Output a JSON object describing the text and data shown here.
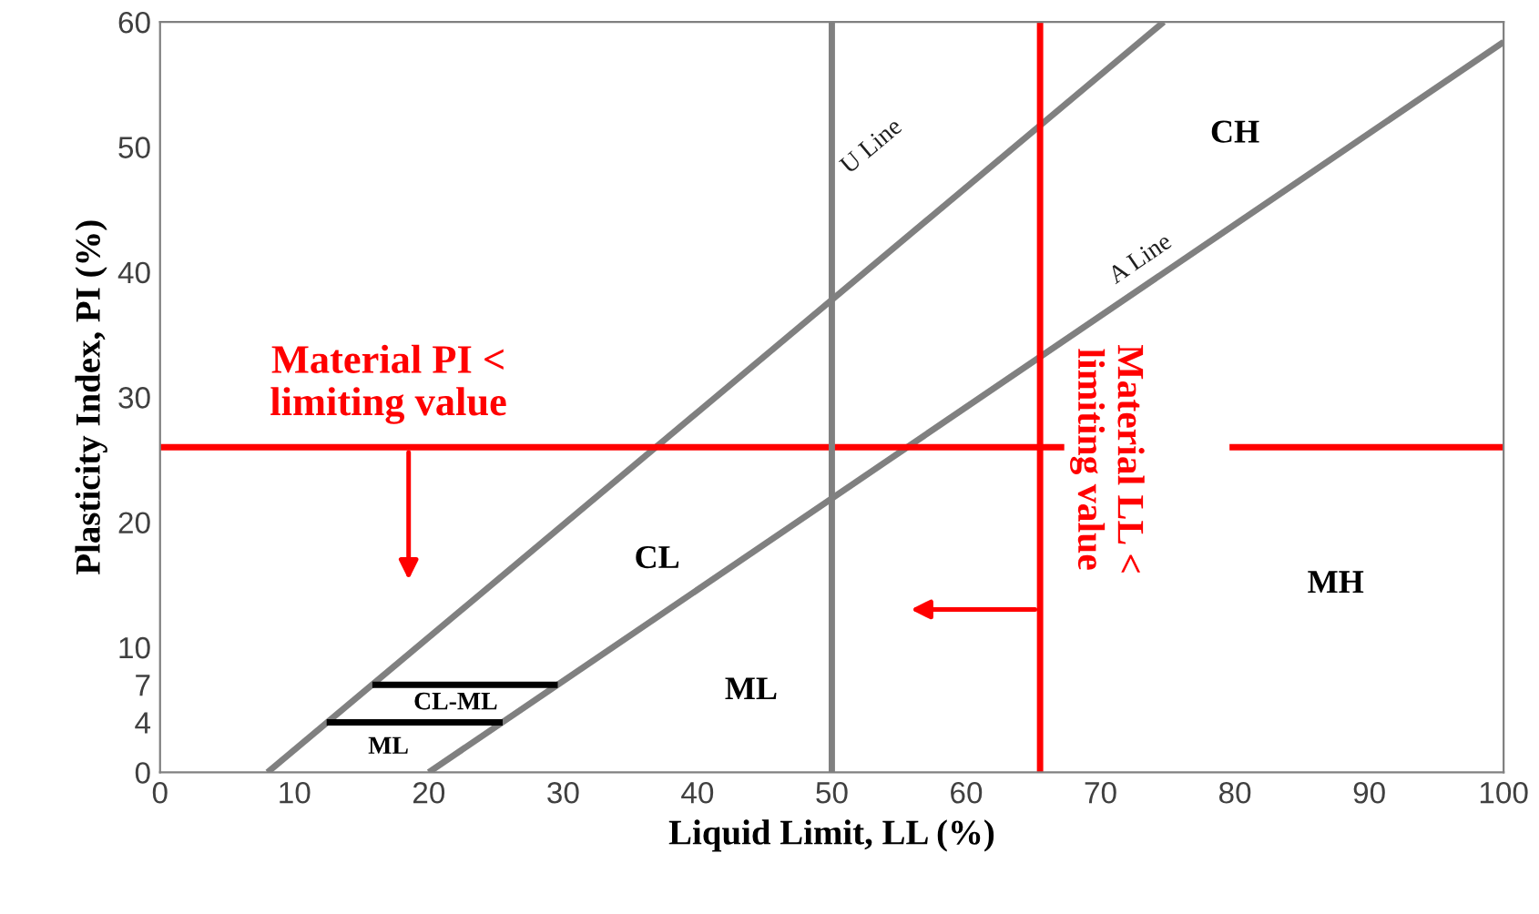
{
  "chart_data": {
    "type": "line",
    "xlabel": "Liquid Limit, LL (%)",
    "ylabel": "Plasticity Index, PI (%)",
    "xlim": [
      0,
      100
    ],
    "ylim": [
      0,
      60
    ],
    "xticks": [
      0,
      10,
      20,
      30,
      40,
      50,
      60,
      70,
      80,
      90,
      100
    ],
    "yticks": [
      0,
      4,
      7,
      10,
      20,
      30,
      40,
      50,
      60
    ],
    "grid": false,
    "marker": "none",
    "line_style": "solid",
    "series": [
      {
        "color": "#808080",
        "x": [
          8,
          74.7
        ],
        "values": [
          0,
          60
        ]
      },
      {
        "color": "#808080",
        "x": [
          20,
          100
        ],
        "values": [
          0,
          58.4
        ]
      },
      {
        "color": "#000000",
        "x": [
          15.8,
          29.6
        ],
        "values": [
          7,
          7
        ]
      },
      {
        "color": "#000000",
        "x": [
          12.4,
          25.5
        ],
        "values": [
          4,
          4
        ]
      },
      {
        "color": "#ff0000",
        "x": [
          0,
          67.3,
          73,
          79.6,
          100
        ],
        "values": [
          26,
          26,
          null,
          26,
          26
        ]
      }
    ],
    "ref_lines": [
      {
        "axis": "x",
        "value": 50,
        "color": "#808080"
      },
      {
        "axis": "x",
        "value": 65.5,
        "color": "#ff0000"
      }
    ],
    "annotations": [
      "Material PI <\nlimiting value",
      "Material LL <\nlimiting value",
      "U Line",
      "A Line",
      "CH",
      "CL",
      "ML",
      "CL-ML",
      "ML",
      "MH"
    ]
  }
}
